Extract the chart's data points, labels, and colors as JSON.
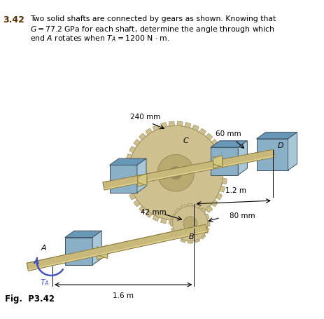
{
  "shaft_color": "#c8b87a",
  "shaft_dark": "#8a7a40",
  "shaft_light": "#e0d090",
  "gear_large_color": "#cfc090",
  "gear_large_dark": "#a09060",
  "gear_small_color": "#c8b870",
  "block_color": "#8ab0c8",
  "block_top": "#6898b8",
  "block_right": "#a8c8d8",
  "block_edge": "#405060",
  "arrow_color": "#4455bb",
  "bg_color": "#ffffff",
  "text_color": "#000000",
  "title_bold_color": "#5a3000",
  "dim_color": "#000000",
  "title_num": "3.42",
  "title_line1": "Two solid shafts are connected by gears as shown. Knowing that",
  "title_line2": "$G = 77.2$ GPa for each shaft, determine the angle through which",
  "title_line3": "end $A$ rotates when $T_A = 1200$ N · m.",
  "fig_label": "Fig.  P3.42"
}
